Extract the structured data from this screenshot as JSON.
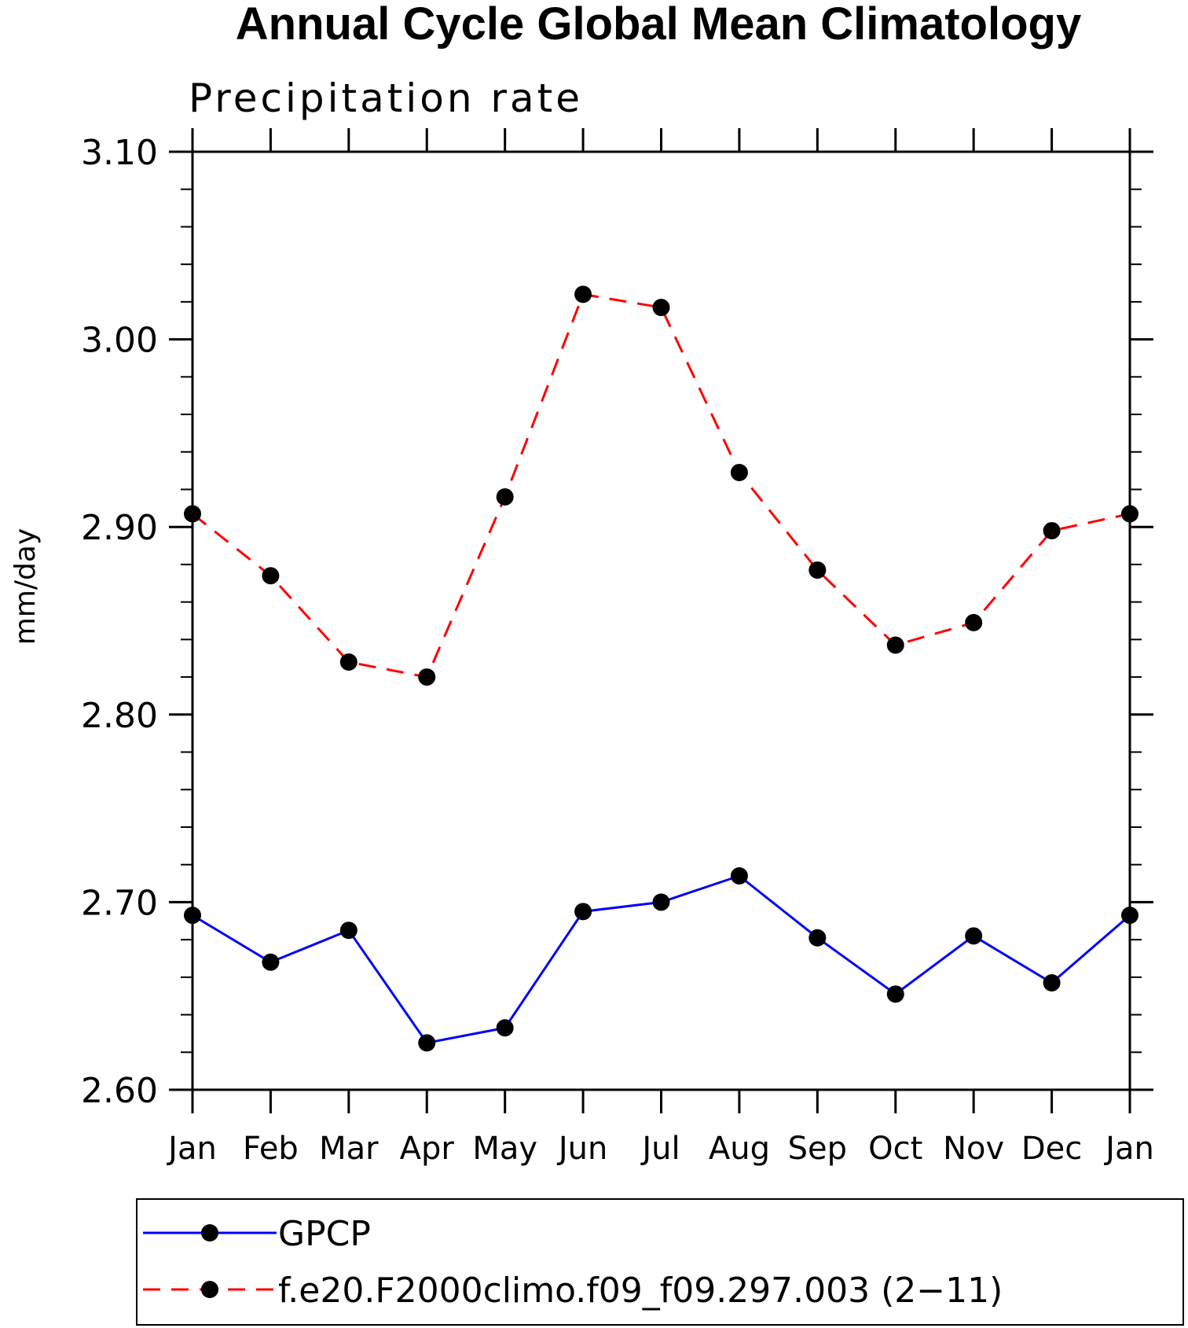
{
  "chart_data": {
    "type": "line",
    "title": "Annual Cycle Global Mean Climatology",
    "subtitle": "Precipitation rate",
    "xlabel": "",
    "ylabel": "mm/day",
    "categories": [
      "Jan",
      "Feb",
      "Mar",
      "Apr",
      "May",
      "Jun",
      "Jul",
      "Aug",
      "Sep",
      "Oct",
      "Nov",
      "Dec",
      "Jan"
    ],
    "ylim": [
      2.6,
      3.1
    ],
    "yticks": [
      2.6,
      2.7,
      2.8,
      2.9,
      3.0,
      3.1
    ],
    "ytick_labels": [
      "2.60",
      "2.70",
      "2.80",
      "2.90",
      "3.00",
      "3.10"
    ],
    "y_minor_step": 0.02,
    "grid": false,
    "legend_position": "bottom",
    "series": [
      {
        "name": "GPCP",
        "color": "#0000ff",
        "dash": "solid",
        "marker": "filled-circle",
        "values": [
          2.693,
          2.668,
          2.685,
          2.625,
          2.633,
          2.695,
          2.7,
          2.714,
          2.681,
          2.651,
          2.682,
          2.657,
          2.693
        ]
      },
      {
        "name": "f.e20.F2000climo.f09_f09.297.003 (2−11)",
        "color": "#ff0000",
        "dash": "dashed",
        "marker": "filled-circle",
        "values": [
          2.907,
          2.874,
          2.828,
          2.82,
          2.916,
          3.024,
          3.017,
          2.929,
          2.877,
          2.837,
          2.849,
          2.898,
          2.907
        ]
      }
    ]
  }
}
